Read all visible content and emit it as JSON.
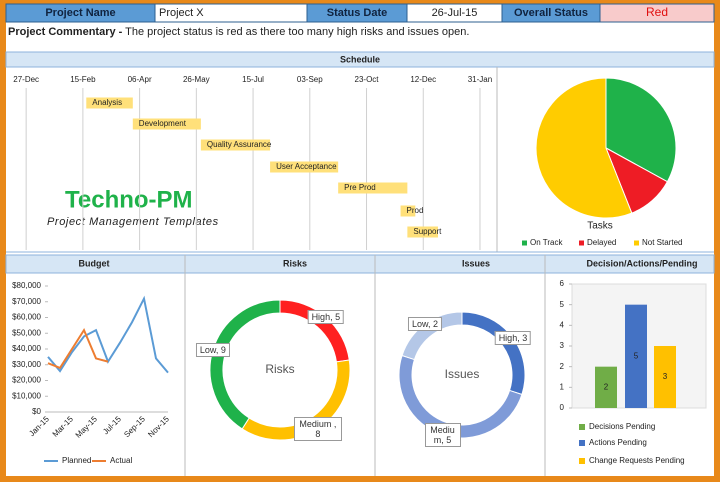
{
  "header": {
    "cells": [
      {
        "label": "Project Name",
        "value": "Project X"
      },
      {
        "label": "Status Date",
        "value": "26-Jul-15"
      },
      {
        "label": "Overall Status",
        "value": "Red"
      }
    ]
  },
  "commentary": {
    "label": "Project Commentary -",
    "text": "The project status is red as there too many high risks and issues open."
  },
  "logo": {
    "title": "Techno-PM",
    "subtitle": "Project Management Templates"
  },
  "chart_data": [
    {
      "type": "gantt",
      "title": "Schedule",
      "color": "#ffe07a",
      "xlim": [
        -16,
        415
      ],
      "xticks": [
        {
          "value": 0,
          "label": "27-Dec"
        },
        {
          "value": 50,
          "label": "15-Feb"
        },
        {
          "value": 100,
          "label": "06-Apr"
        },
        {
          "value": 150,
          "label": "26-May"
        },
        {
          "value": 200,
          "label": "15-Jul"
        },
        {
          "value": 250,
          "label": "03-Sep"
        },
        {
          "value": 300,
          "label": "23-Oct"
        },
        {
          "value": 350,
          "label": "12-Dec"
        },
        {
          "value": 400,
          "label": "31-Jan"
        }
      ],
      "tasks": [
        {
          "name": "Analysis",
          "start": 53,
          "end": 94
        },
        {
          "name": "Development",
          "start": 94,
          "end": 154
        },
        {
          "name": "Quality Assurance",
          "start": 154,
          "end": 215
        },
        {
          "name": "User Acceptance",
          "start": 215,
          "end": 275
        },
        {
          "name": "Pre Prod",
          "start": 275,
          "end": 336
        },
        {
          "name": "Prod",
          "start": 330,
          "end": 343
        },
        {
          "name": "Support",
          "start": 336,
          "end": 363
        }
      ]
    },
    {
      "type": "pie",
      "title": "Tasks",
      "categories": [
        "On Track",
        "Delayed",
        "Not Started"
      ],
      "values": [
        33,
        11,
        56
      ],
      "colors": [
        "#1fb24a",
        "#ee1c25",
        "#ffcc00"
      ]
    },
    {
      "type": "line",
      "title": "Budget",
      "categories": [
        "Jan-15",
        null,
        "Mar-15",
        null,
        "May-15",
        null,
        "Jul-15",
        null,
        "Sep-15",
        null,
        "Nov-15"
      ],
      "series": [
        {
          "name": "Planned",
          "color": "#5b9bd5",
          "values": [
            35000,
            26000,
            38000,
            48000,
            52000,
            32000,
            44000,
            57000,
            72000,
            34000,
            25000
          ]
        },
        {
          "name": "Actual",
          "color": "#ed7d31",
          "values": [
            31000,
            28000,
            40000,
            52000,
            34000,
            32000,
            null,
            null,
            null,
            null,
            null
          ]
        }
      ],
      "ylim": [
        0,
        80000
      ],
      "yticks": [
        {
          "value": 0,
          "label": "$0"
        },
        {
          "value": 10000,
          "label": "$10,000"
        },
        {
          "value": 20000,
          "label": "$20,000"
        },
        {
          "value": 30000,
          "label": "$30,000"
        },
        {
          "value": 40000,
          "label": "$40,000"
        },
        {
          "value": 50000,
          "label": "$50,000"
        },
        {
          "value": 60000,
          "label": "$60,000"
        },
        {
          "value": 70000,
          "label": "$70,000"
        },
        {
          "value": 80000,
          "label": "$80,000"
        }
      ],
      "grid": false
    },
    {
      "type": "donut",
      "title": "Risks",
      "center_label": "Risks",
      "values": [
        5,
        8,
        9
      ],
      "value_labels": [
        "High, 5",
        "Medium , 8",
        "Low, 9"
      ],
      "colors": [
        "#ff2020",
        "#ffc000",
        "#1fb24a"
      ]
    },
    {
      "type": "donut",
      "title": "Issues",
      "center_label": "Issues",
      "values": [
        3,
        5,
        2
      ],
      "value_labels": [
        "High, 3",
        "Medium, 5",
        "Low, 2"
      ],
      "colors": [
        "#4472c4",
        "#7f9bd8",
        "#b4c7e7"
      ]
    },
    {
      "type": "bar",
      "title": "Decision/Actions/Pending",
      "series": [
        {
          "name": "Decisions Pending",
          "color": "#70ad47",
          "values": [
            2
          ]
        },
        {
          "name": "Actions Pending",
          "color": "#4472c4",
          "values": [
            5
          ]
        },
        {
          "name": "Change Requests Pending",
          "color": "#ffc000",
          "values": [
            3
          ]
        }
      ],
      "ylim": [
        0,
        6
      ],
      "yticks": [
        0,
        1,
        2,
        3,
        4,
        5,
        6
      ],
      "grid": false
    }
  ]
}
